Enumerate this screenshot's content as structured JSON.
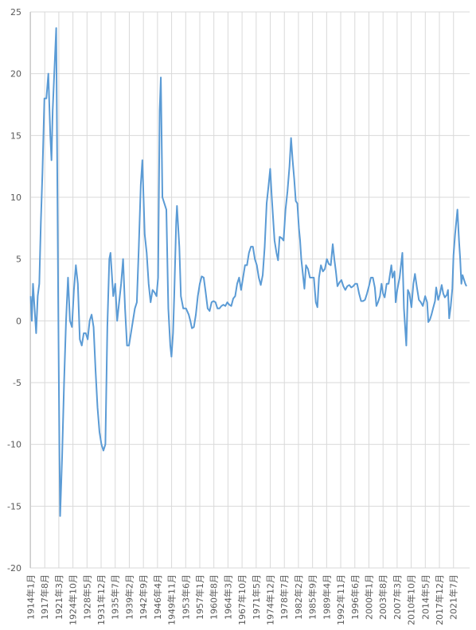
{
  "chart_data": {
    "type": "line",
    "color": "#5b9bd5",
    "grid": true,
    "xlim": [
      1913.9,
      2025.6
    ],
    "ylim": [
      -20,
      25
    ],
    "yticks": [
      -20,
      -15,
      -10,
      -5,
      0,
      5,
      10,
      15,
      20,
      25
    ],
    "xticks": [
      {
        "value": 1914.0,
        "label": "1914年1月"
      },
      {
        "value": 1917.583,
        "label": "1917年8月"
      },
      {
        "value": 1921.167,
        "label": "1921年3月"
      },
      {
        "value": 1924.75,
        "label": "1924年10月"
      },
      {
        "value": 1928.333,
        "label": "1928年5月"
      },
      {
        "value": 1931.917,
        "label": "1931年12月"
      },
      {
        "value": 1935.5,
        "label": "1935年7月"
      },
      {
        "value": 1939.083,
        "label": "1939年2月"
      },
      {
        "value": 1942.667,
        "label": "1942年9月"
      },
      {
        "value": 1946.25,
        "label": "1946年4月"
      },
      {
        "value": 1949.833,
        "label": "1949年11月"
      },
      {
        "value": 1953.417,
        "label": "1953年6月"
      },
      {
        "value": 1957.0,
        "label": "1957年1月"
      },
      {
        "value": 1960.583,
        "label": "1960年8月"
      },
      {
        "value": 1964.167,
        "label": "1964年3月"
      },
      {
        "value": 1967.75,
        "label": "1967年10月"
      },
      {
        "value": 1971.333,
        "label": "1971年5月"
      },
      {
        "value": 1974.917,
        "label": "1974年12月"
      },
      {
        "value": 1978.5,
        "label": "1978年7月"
      },
      {
        "value": 1982.083,
        "label": "1982年2月"
      },
      {
        "value": 1985.667,
        "label": "1985年9月"
      },
      {
        "value": 1989.25,
        "label": "1989年4月"
      },
      {
        "value": 1992.833,
        "label": "1992年11月"
      },
      {
        "value": 1996.417,
        "label": "1996年6月"
      },
      {
        "value": 2000.0,
        "label": "2000年1月"
      },
      {
        "value": 2003.583,
        "label": "2003年8月"
      },
      {
        "value": 2007.167,
        "label": "2007年3月"
      },
      {
        "value": 2010.75,
        "label": "2010年10月"
      },
      {
        "value": 2014.333,
        "label": "2014年5月"
      },
      {
        "value": 2017.917,
        "label": "2017年12月"
      },
      {
        "value": 2021.5,
        "label": "2021年7月"
      }
    ],
    "x": [
      1914,
      1914.3,
      1914.6,
      1915,
      1915.4,
      1915.8,
      1916.2,
      1916.6,
      1917,
      1917.5,
      1918,
      1918.5,
      1919,
      1919.3,
      1919.6,
      1920,
      1920.5,
      1921,
      1921.3,
      1921.5,
      1922,
      1922.5,
      1923,
      1923.5,
      1924,
      1924.5,
      1925,
      1925.5,
      1926,
      1926.5,
      1927,
      1927.5,
      1928,
      1928.5,
      1929,
      1929.5,
      1930,
      1930.5,
      1931,
      1931.5,
      1932,
      1932.5,
      1933,
      1933.5,
      1934,
      1934.3,
      1935,
      1935.5,
      1936,
      1936.5,
      1937,
      1937.5,
      1938,
      1938.5,
      1939,
      1939.5,
      1940,
      1940.5,
      1941,
      1941.5,
      1942,
      1942.4,
      1943,
      1943.5,
      1944,
      1944.5,
      1945,
      1945.5,
      1946,
      1946.4,
      1946.8,
      1947.1,
      1947.5,
      1948,
      1948.5,
      1949,
      1949.5,
      1949.8,
      1950.2,
      1950.5,
      1951,
      1951.2,
      1951.8,
      1952.2,
      1952.8,
      1953.5,
      1954.2,
      1954.6,
      1955,
      1955.5,
      1956,
      1956.5,
      1957,
      1957.5,
      1958,
      1958.5,
      1959,
      1959.5,
      1960,
      1960.5,
      1961,
      1961.5,
      1962,
      1962.5,
      1963,
      1963.5,
      1964,
      1964.5,
      1965,
      1965.5,
      1966,
      1966.5,
      1967,
      1967.5,
      1968,
      1968.5,
      1969,
      1969.5,
      1970,
      1970.5,
      1971,
      1971.5,
      1972,
      1972.5,
      1973,
      1973.5,
      1974,
      1974.5,
      1974.9,
      1975.3,
      1975.6,
      1976,
      1976.5,
      1976.9,
      1977.3,
      1977.8,
      1978.3,
      1978.8,
      1979.3,
      1979.8,
      1980.2,
      1980.6,
      1981,
      1981.4,
      1981.8,
      1982.2,
      1982.5,
      1982.8,
      1983.3,
      1983.6,
      1984,
      1984.5,
      1985,
      1985.5,
      1986,
      1986.5,
      1986.9,
      1987.3,
      1987.8,
      1988.3,
      1988.8,
      1989.3,
      1989.8,
      1990.3,
      1990.8,
      1991.2,
      1991.6,
      1992,
      1992.5,
      1993,
      1993.5,
      1994,
      1994.5,
      1995,
      1995.5,
      1996,
      1996.5,
      1997,
      1997.5,
      1998,
      1998.5,
      1999,
      1999.5,
      2000,
      2000.5,
      2001,
      2001.5,
      2001.9,
      2002.3,
      2002.8,
      2003.2,
      2003.6,
      2004,
      2004.5,
      2005,
      2005.7,
      2006,
      2006.5,
      2006.8,
      2007.2,
      2007.8,
      2008.5,
      2008.9,
      2009.5,
      2009.9,
      2010.3,
      2010.8,
      2011.3,
      2011.7,
      2012.2,
      2012.7,
      2013.2,
      2013.7,
      2014.3,
      2014.8,
      2015.1,
      2015.5,
      2015.9,
      2016.3,
      2016.8,
      2017.1,
      2017.6,
      2018,
      2018.5,
      2018.9,
      2019.3,
      2019.8,
      2020.1,
      2020.4,
      2020.8,
      2021.2,
      2021.5,
      2021.9,
      2022.5,
      2022.9,
      2023.2,
      2023.5,
      2023.8,
      2024.2,
      2024.5,
      2024.8
    ],
    "values": [
      2,
      0,
      3,
      1,
      -1,
      2,
      3,
      8,
      12,
      18,
      18,
      20,
      15,
      13,
      17,
      20,
      23.7,
      2,
      -10,
      -15.8,
      -11,
      -5,
      0,
      3.5,
      0,
      -0.5,
      2.5,
      4.5,
      3,
      -1.5,
      -2,
      -1,
      -1,
      -1.5,
      0,
      0.5,
      -0.5,
      -4,
      -7,
      -9,
      -10,
      -10.5,
      -10,
      -0.5,
      5,
      5.5,
      2,
      3,
      0,
      1.5,
      3,
      5,
      1,
      -2,
      -2,
      -1,
      0,
      1,
      1.5,
      6,
      11,
      13,
      7,
      5.5,
      3,
      1.5,
      2.5,
      2.3,
      2,
      3.5,
      17,
      19.7,
      10,
      9.5,
      9,
      1,
      -2,
      -2.9,
      -1,
      2,
      8,
      9.3,
      6,
      2,
      1,
      1,
      0.5,
      0,
      -0.6,
      -0.5,
      0.5,
      2,
      3,
      3.6,
      3.5,
      2.3,
      1,
      0.8,
      1.5,
      1.6,
      1.5,
      1,
      1,
      1.2,
      1.3,
      1.2,
      1.5,
      1.3,
      1.2,
      1.8,
      2,
      3,
      3.5,
      2.5,
      3.5,
      4.5,
      4.5,
      5.5,
      6,
      6,
      5,
      4.5,
      3.5,
      2.9,
      3.7,
      6,
      9.5,
      11,
      12.3,
      10,
      8.5,
      6.5,
      5.5,
      4.9,
      6.8,
      6.7,
      6.5,
      9,
      10.5,
      12.5,
      14.8,
      13,
      11.5,
      9.7,
      9.5,
      7.5,
      6.5,
      5,
      3.5,
      2.6,
      4.5,
      4.2,
      3.5,
      3.5,
      3.5,
      1.5,
      1.1,
      3.5,
      4.5,
      4,
      4.2,
      5,
      4.6,
      4.5,
      6.2,
      5,
      4,
      2.8,
      3.1,
      3.3,
      2.8,
      2.5,
      2.8,
      2.9,
      2.7,
      2.8,
      3,
      3,
      2.2,
      1.6,
      1.6,
      1.7,
      2.2,
      2.8,
      3.5,
      3.5,
      2.7,
      1.2,
      1.5,
      2,
      3,
      2.2,
      1.9,
      3,
      3,
      4.5,
      3.5,
      4,
      1.5,
      2.5,
      3.5,
      5.5,
      1,
      -2,
      2.5,
      2.2,
      1.1,
      3,
      3.8,
      2.7,
      1.7,
      1.5,
      1.2,
      2,
      1.5,
      -0.1,
      0.1,
      0.5,
      1,
      1.6,
      2.7,
      1.7,
      2.1,
      2.9,
      2.2,
      1.9,
      2.1,
      2.5,
      0.2,
      1.2,
      2.6,
      5.3,
      7,
      9,
      6.5,
      5,
      3,
      3.7,
      3.3,
      3,
      2.8
    ]
  }
}
